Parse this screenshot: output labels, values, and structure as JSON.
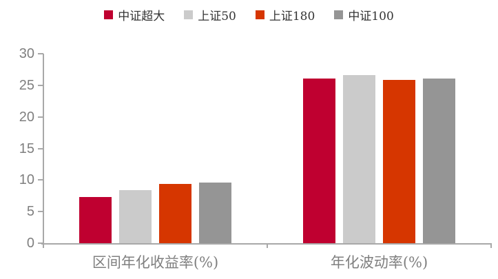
{
  "chart_data": {
    "type": "bar",
    "title": "",
    "categories": [
      "区间年化收益率(%)",
      "年化波动率(%)"
    ],
    "series": [
      {
        "name": "中证超大",
        "color": "#bf0030",
        "values": [
          7.3,
          26.1
        ]
      },
      {
        "name": "上证50",
        "color": "#cbcbcb",
        "values": [
          8.4,
          26.6
        ]
      },
      {
        "name": "上证180",
        "color": "#d63600",
        "values": [
          9.4,
          25.9
        ]
      },
      {
        "name": "中证100",
        "color": "#959595",
        "values": [
          9.6,
          26.1
        ]
      }
    ],
    "xlabel": "",
    "ylabel": "",
    "ylim": [
      0,
      30
    ],
    "yticks": [
      0,
      5,
      10,
      15,
      20,
      25,
      30
    ],
    "grid": false,
    "legend_position": "top"
  },
  "colors": {
    "axis": "#a8a8a8",
    "tick_text": "#7f7f7f",
    "category_text": "#7f7f7f",
    "legend_text": "#333333",
    "background": "#ffffff"
  }
}
